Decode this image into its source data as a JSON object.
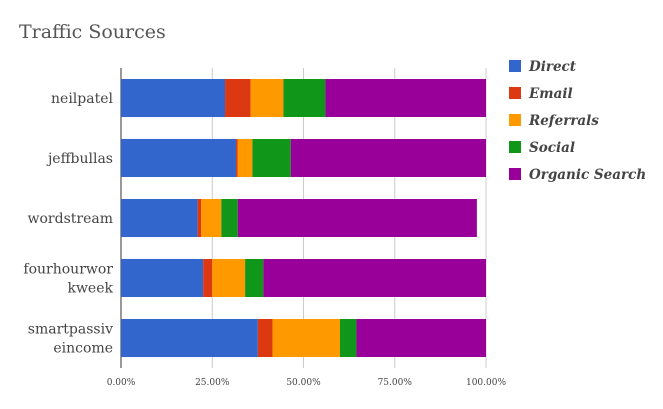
{
  "chart_data": {
    "type": "bar",
    "orientation": "horizontal",
    "stacked": true,
    "title": "Traffic Sources",
    "categories": [
      [
        "neilpatel"
      ],
      [
        "jeffbullas"
      ],
      [
        "wordstream"
      ],
      [
        "fourhourwor",
        "kweek"
      ],
      [
        "smartpassiv",
        "eincome"
      ]
    ],
    "series": [
      {
        "name": "Direct",
        "color": "#3366cc",
        "values": [
          28.5,
          31.5,
          21.0,
          22.5,
          37.5
        ]
      },
      {
        "name": "Email",
        "color": "#dc3912",
        "values": [
          7.0,
          0.5,
          1.0,
          2.5,
          4.0
        ]
      },
      {
        "name": "Referrals",
        "color": "#ff9900",
        "values": [
          9.0,
          4.0,
          5.5,
          9.0,
          18.5
        ]
      },
      {
        "name": "Social",
        "color": "#109618",
        "values": [
          11.5,
          10.5,
          4.5,
          5.0,
          4.5
        ]
      },
      {
        "name": "Organic Search",
        "color": "#990099",
        "values": [
          44.0,
          53.5,
          65.5,
          61.0,
          35.5
        ]
      }
    ],
    "x_ticks": [
      "0.00%",
      "25.00%",
      "50.00%",
      "75.00%",
      "100.00%"
    ],
    "xlim": [
      0,
      100
    ],
    "grid": true,
    "legend_position": "right"
  }
}
